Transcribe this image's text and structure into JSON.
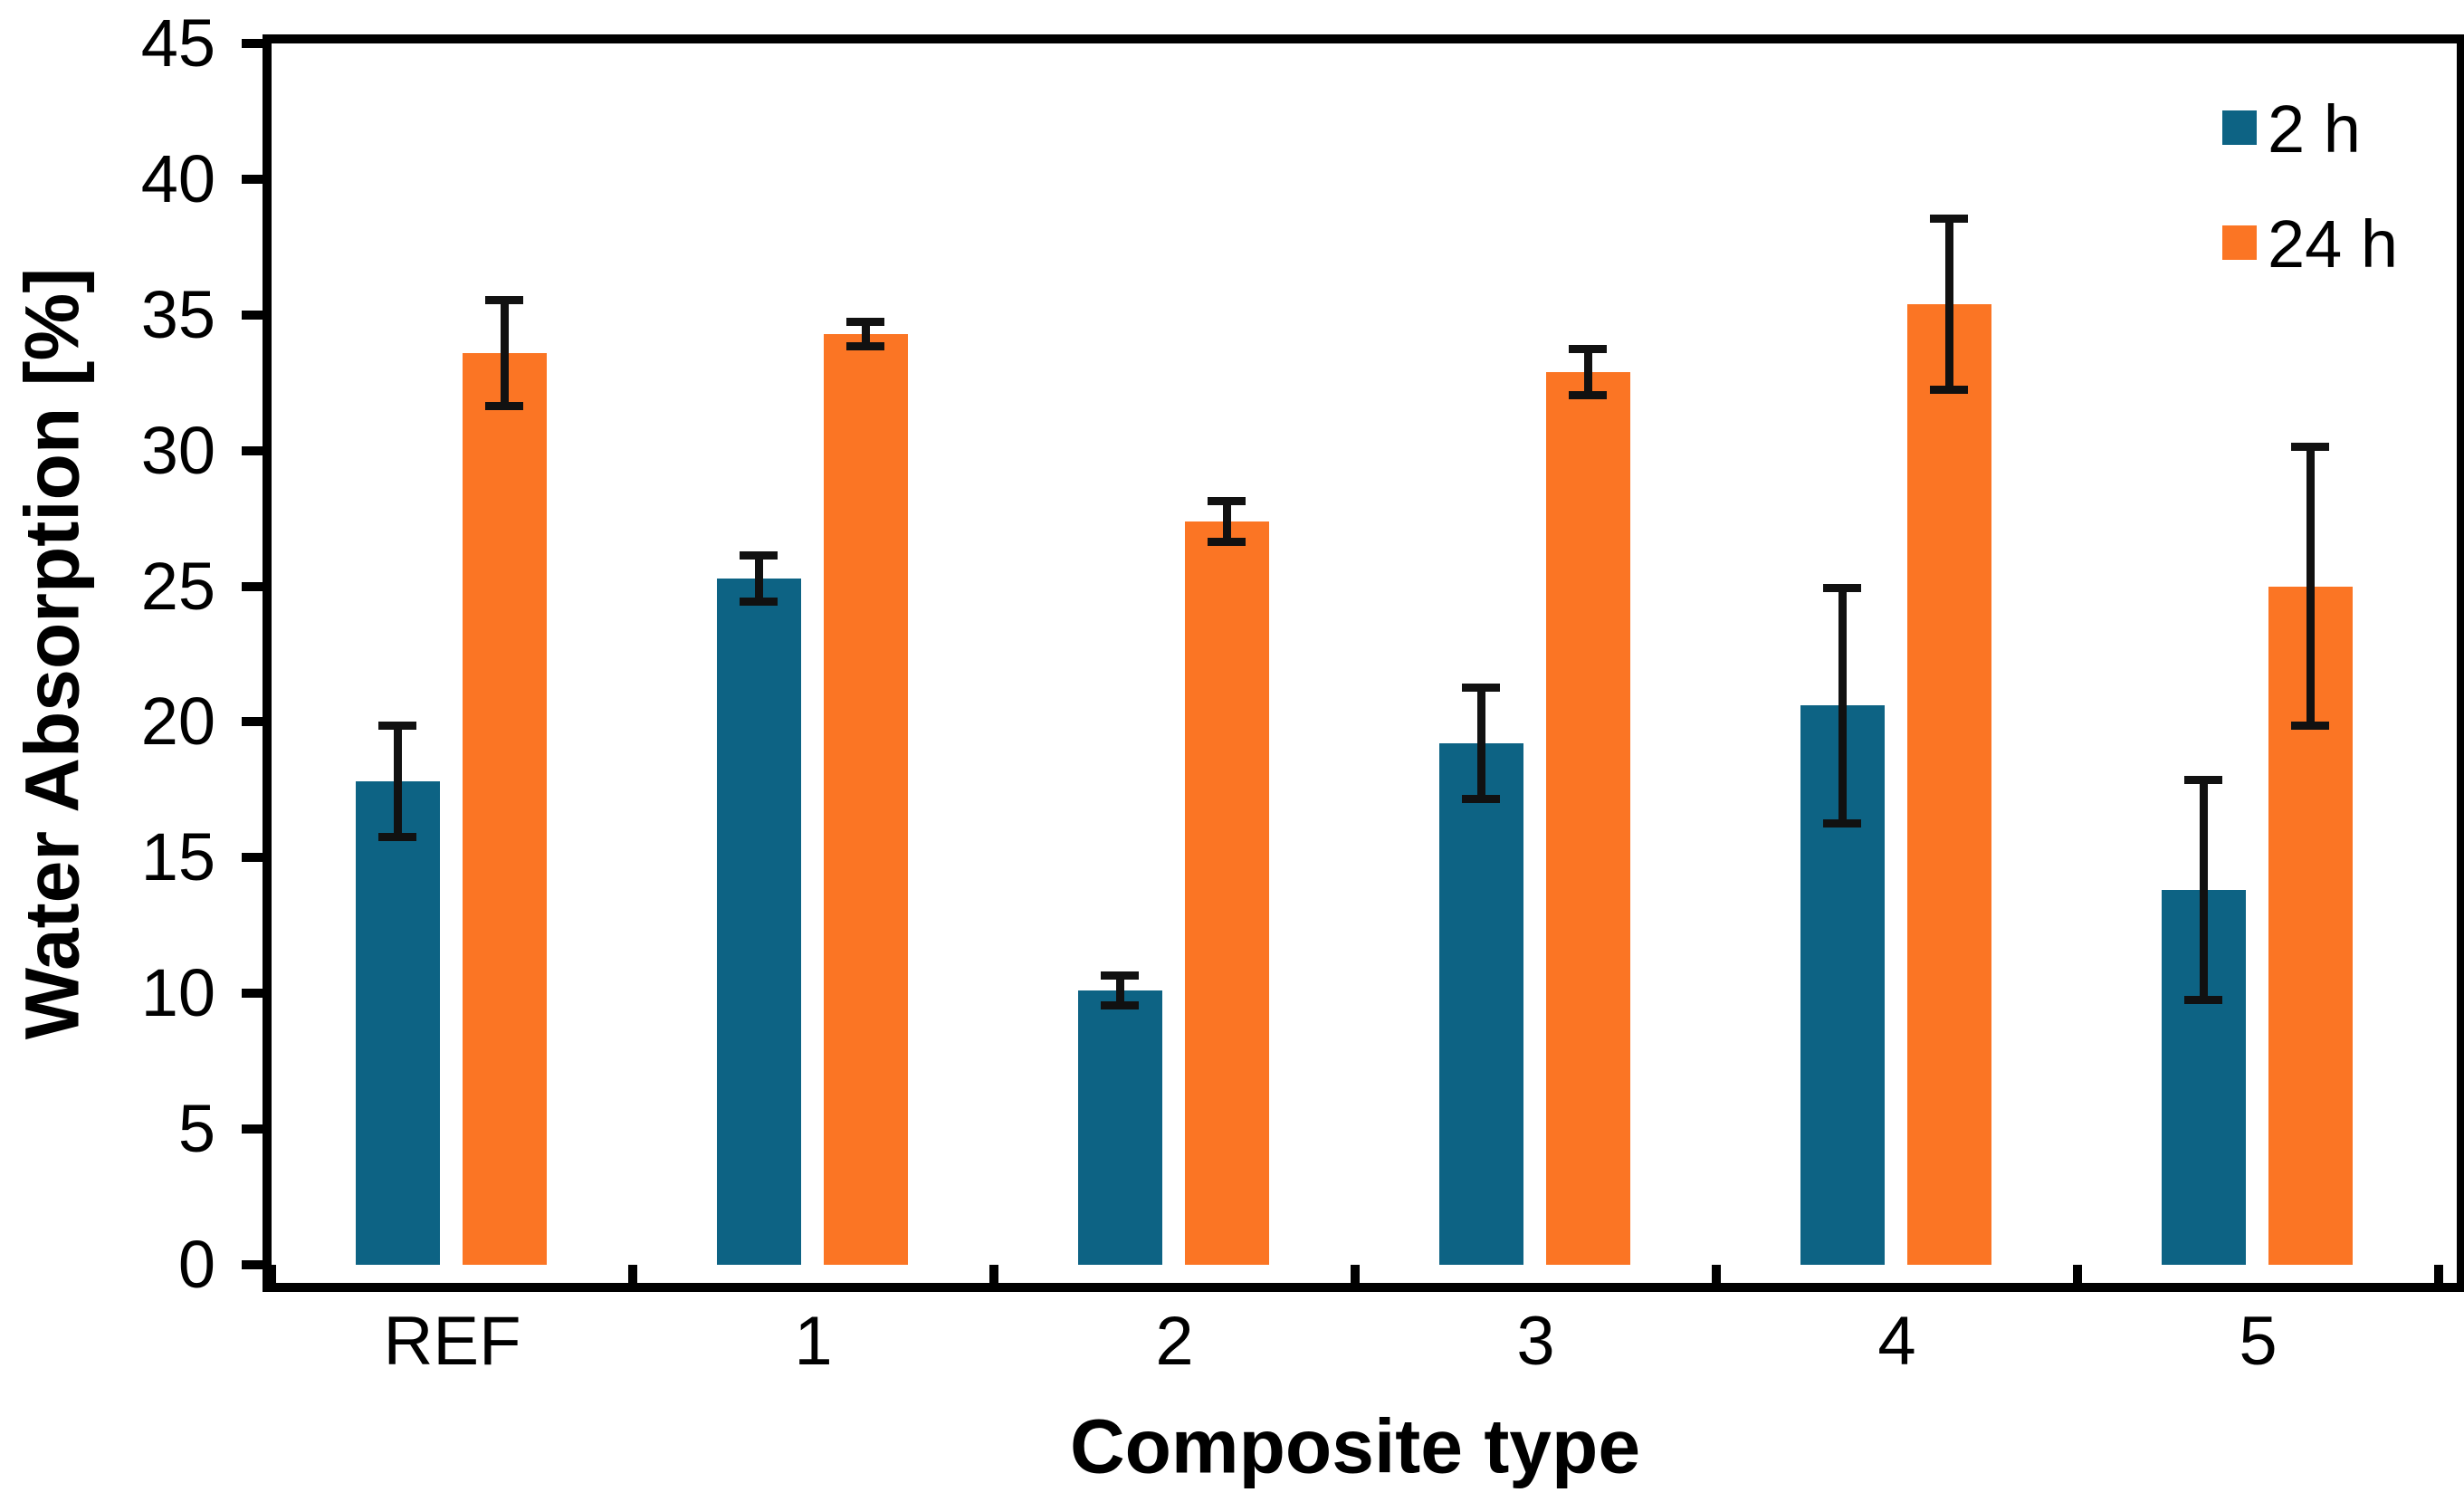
{
  "chart_data": {
    "type": "bar",
    "title": "",
    "xlabel": "Composite type",
    "ylabel": "Water Absorption [%]",
    "categories": [
      "REF",
      "1",
      "2",
      "3",
      "4",
      "5"
    ],
    "series": [
      {
        "name": "2 h",
        "color": "#0d6384",
        "values": [
          17.8,
          25.3,
          10.1,
          19.2,
          20.6,
          13.8
        ],
        "errors": [
          2.2,
          1.0,
          0.7,
          2.2,
          4.5,
          4.2
        ]
      },
      {
        "name": "24 h",
        "color": "#fb7524",
        "values": [
          33.6,
          34.3,
          27.4,
          32.9,
          35.4,
          25.0
        ],
        "errors": [
          2.1,
          0.6,
          0.9,
          1.0,
          3.3,
          5.3
        ]
      }
    ],
    "ylim": [
      0,
      45
    ],
    "yticks": [
      0,
      5,
      10,
      15,
      20,
      25,
      30,
      35,
      40,
      45
    ],
    "grid": false,
    "plot_background": "#ffffff",
    "axis_color": "#000000",
    "error_bar_color": "#111111",
    "legend_position": "top-right"
  }
}
